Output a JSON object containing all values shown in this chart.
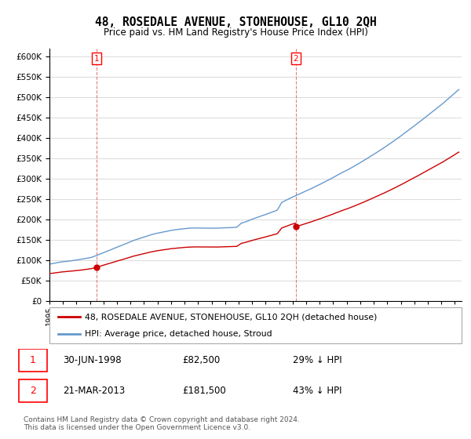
{
  "title": "48, ROSEDALE AVENUE, STONEHOUSE, GL10 2QH",
  "subtitle": "Price paid vs. HM Land Registry's House Price Index (HPI)",
  "ylim": [
    0,
    620000
  ],
  "yticks": [
    0,
    50000,
    100000,
    150000,
    200000,
    250000,
    300000,
    350000,
    400000,
    450000,
    500000,
    550000,
    600000
  ],
  "xlim_start": 1995.0,
  "xlim_end": 2025.5,
  "legend_line1": "48, ROSEDALE AVENUE, STONEHOUSE, GL10 2QH (detached house)",
  "legend_line2": "HPI: Average price, detached house, Stroud",
  "sale1_year": 1998.5,
  "sale1_price": 82500,
  "sale2_year": 2013.22,
  "sale2_price": 181500,
  "table_data": [
    [
      "1",
      "30-JUN-1998",
      "£82,500",
      "29% ↓ HPI"
    ],
    [
      "2",
      "21-MAR-2013",
      "£181,500",
      "43% ↓ HPI"
    ]
  ],
  "footnote": "Contains HM Land Registry data © Crown copyright and database right 2024.\nThis data is licensed under the Open Government Licence v3.0.",
  "line_color_red": "#cc0000",
  "line_color_blue": "#6699cc",
  "background_color": "#ffffff",
  "grid_color": "#dddddd",
  "n_points": 364
}
